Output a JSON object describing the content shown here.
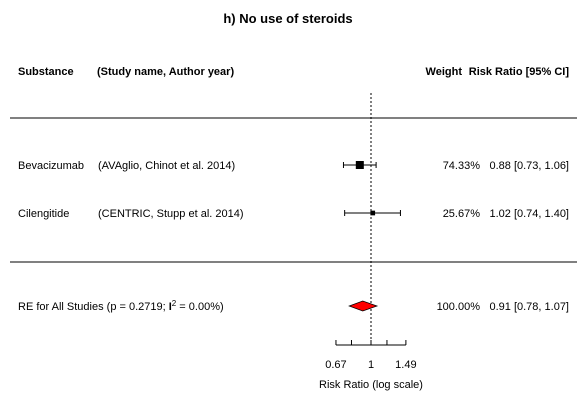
{
  "chart_data": {
    "type": "forest",
    "title": "h) No use of steroids",
    "headers": {
      "substance": "Substance",
      "study": "(Study name, Author year)",
      "weight": "Weight",
      "rr": "Risk Ratio [95% CI]"
    },
    "studies": [
      {
        "substance": "Bevacizumab",
        "study": "(AVAglio, Chinot et al. 2014)",
        "weight_label": "74.33%",
        "weight": 74.33,
        "rr": 0.88,
        "lower": 0.73,
        "upper": 1.06,
        "ci_label": "0.88 [0.73, 1.06]"
      },
      {
        "substance": "Cilengitide",
        "study": "(CENTRIC, Stupp et al. 2014)",
        "weight_label": "25.67%",
        "weight": 25.67,
        "rr": 1.02,
        "lower": 0.74,
        "upper": 1.4,
        "ci_label": "1.02 [0.74, 1.40]"
      }
    ],
    "summary": {
      "label_prefix": "RE for All Studies (p = 0.2719; ",
      "label_i": "I",
      "label_sup": "2",
      "label_suffix": " = 0.00%)",
      "weight_label": "100.00%",
      "rr": 0.91,
      "lower": 0.78,
      "upper": 1.07,
      "ci_label": "0.91 [0.78, 1.07]",
      "color": "#ff0000"
    },
    "x_axis": {
      "label": "Risk Ratio (log scale)",
      "scale": "log",
      "ticks": [
        0.67,
        1,
        1.49
      ],
      "tick_labels": [
        "0.67",
        "1",
        "1.49"
      ],
      "minor_ticks": [
        0.8,
        1.2
      ],
      "reference_line": 1
    }
  }
}
